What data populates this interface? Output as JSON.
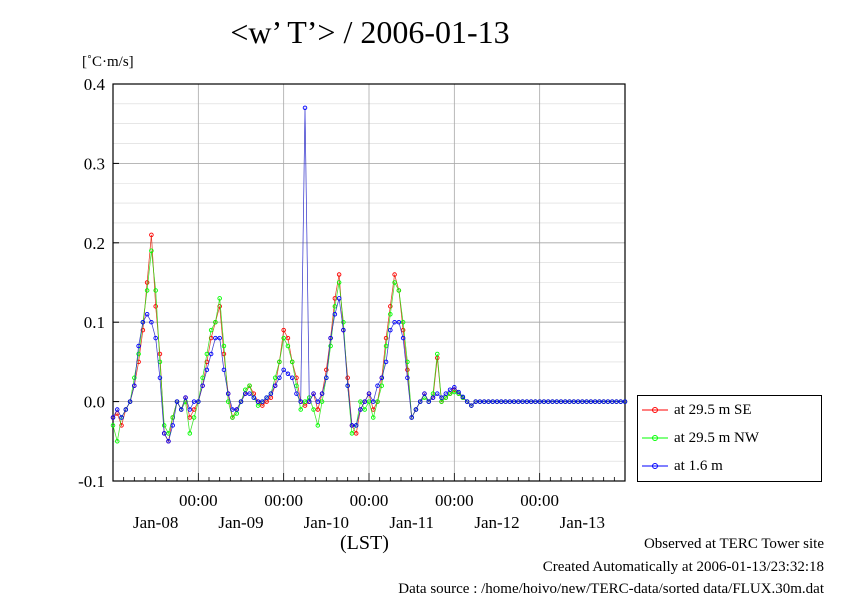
{
  "title": "<w’ T’> / 2006-01-13",
  "unit_label": "[˚C·m/s]",
  "x_axis_label": "(LST)",
  "footer": {
    "line1": "Observed at TERC Tower site",
    "line2": "Created Automatically at 2006-01-13/23:32:18",
    "line3": "Data source : /home/hoivo/new/TERC-data/sorted  data/FLUX.30m.dat"
  },
  "colors": {
    "series1": "#ff0000",
    "series2": "#00ff00",
    "series3": "#0000ff",
    "connector": "#8a8a2a",
    "grid": "#a8a8a8"
  },
  "chart_data": {
    "type": "line",
    "title": "<w’ T’> / 2006-01-13",
    "xlabel": "(LST)",
    "ylabel": "[˚C·m/s]",
    "ylim": [
      -0.1,
      0.4
    ],
    "yticks": [
      "-0.1",
      "0.0",
      "0.1",
      "0.2",
      "0.3",
      "0.4"
    ],
    "xlim_days": [
      0,
      6
    ],
    "time_ticks": [
      "00:00",
      "00:00",
      "00:00",
      "00:00",
      "00:00"
    ],
    "day_labels": [
      "Jan-08",
      "Jan-09",
      "Jan-10",
      "Jan-11",
      "Jan-12",
      "Jan-13"
    ],
    "grid": true,
    "legend_position": "right-bottom",
    "x_units": "days since start of Jan-08 (LST)",
    "series": [
      {
        "name": "at 29.5 m SE",
        "color": "#ff0000",
        "x": [
          0.0,
          0.05,
          0.1,
          0.15,
          0.2,
          0.25,
          0.3,
          0.35,
          0.4,
          0.45,
          0.5,
          0.55,
          0.6,
          0.65,
          0.7,
          0.75,
          0.8,
          0.85,
          0.9,
          0.95,
          1.0,
          1.05,
          1.1,
          1.15,
          1.2,
          1.25,
          1.3,
          1.35,
          1.4,
          1.45,
          1.5,
          1.55,
          1.6,
          1.65,
          1.7,
          1.75,
          1.8,
          1.85,
          1.9,
          1.95,
          2.0,
          2.05,
          2.1,
          2.15,
          2.2,
          2.25,
          2.3,
          2.35,
          2.4,
          2.45,
          2.5,
          2.55,
          2.6,
          2.65,
          2.7,
          2.75,
          2.8,
          2.85,
          2.9,
          2.95,
          3.0,
          3.05,
          3.1,
          3.15,
          3.2,
          3.25,
          3.3,
          3.35,
          3.4,
          3.45,
          3.5,
          3.55,
          3.6,
          3.65,
          3.7,
          3.75,
          3.8,
          3.85,
          3.9,
          3.95,
          4.0,
          4.05,
          4.1,
          4.15,
          4.2,
          4.25,
          4.3,
          4.35,
          4.4,
          4.45,
          4.5,
          4.55,
          4.6,
          4.65,
          4.7,
          4.75,
          4.8,
          4.85,
          4.9,
          4.95,
          5.0,
          5.05,
          5.1,
          5.15,
          5.2,
          5.25,
          5.3,
          5.35,
          5.4,
          5.45,
          5.5,
          5.55,
          5.6,
          5.65,
          5.7,
          5.75,
          5.8,
          5.85,
          5.9,
          5.95,
          6.0
        ],
        "values": [
          -0.02,
          -0.015,
          -0.03,
          -0.01,
          0.0,
          0.02,
          0.05,
          0.09,
          0.15,
          0.21,
          0.12,
          0.06,
          -0.04,
          -0.05,
          -0.02,
          0.0,
          -0.01,
          0.005,
          -0.02,
          -0.01,
          0.0,
          0.02,
          0.05,
          0.08,
          0.1,
          0.12,
          0.06,
          0.01,
          -0.02,
          -0.01,
          0.0,
          0.01,
          0.02,
          0.01,
          0.0,
          -0.005,
          0.0,
          0.005,
          0.02,
          0.05,
          0.09,
          0.08,
          0.05,
          0.03,
          0.0,
          -0.005,
          0.0,
          0.01,
          -0.01,
          0.01,
          0.04,
          0.08,
          0.13,
          0.16,
          0.09,
          0.03,
          -0.03,
          -0.04,
          -0.01,
          0.0,
          0.01,
          -0.01,
          0.0,
          0.03,
          0.08,
          0.12,
          0.16,
          0.14,
          0.09,
          0.04,
          -0.02,
          -0.01,
          0.0,
          0.01,
          0.0,
          0.005,
          0.055,
          0.0,
          0.005,
          0.01,
          0.015,
          0.01,
          0.005,
          0.0,
          -0.005,
          0.0,
          0.0,
          0.0,
          0.0,
          0.0,
          0.0,
          0.0,
          0.0,
          0.0,
          0.0,
          0.0,
          0.0,
          0.0,
          0.0,
          0.0,
          0.0,
          0.0,
          0.0,
          0.0,
          0.0,
          0.0,
          0.0,
          0.0,
          0.0,
          0.0,
          0.0,
          0.0,
          0.0,
          0.0,
          0.0,
          0.0,
          0.0,
          0.0,
          0.0,
          0.0,
          0.0
        ]
      },
      {
        "name": "at 29.5 m NW",
        "color": "#00ff00",
        "x": [
          0.0,
          0.05,
          0.1,
          0.15,
          0.2,
          0.25,
          0.3,
          0.35,
          0.4,
          0.45,
          0.5,
          0.55,
          0.6,
          0.65,
          0.7,
          0.75,
          0.8,
          0.85,
          0.9,
          0.95,
          1.0,
          1.05,
          1.1,
          1.15,
          1.2,
          1.25,
          1.3,
          1.35,
          1.4,
          1.45,
          1.5,
          1.55,
          1.6,
          1.65,
          1.7,
          1.75,
          1.8,
          1.85,
          1.9,
          1.95,
          2.0,
          2.05,
          2.1,
          2.15,
          2.2,
          2.25,
          2.3,
          2.35,
          2.4,
          2.45,
          2.5,
          2.55,
          2.6,
          2.65,
          2.7,
          2.75,
          2.8,
          2.85,
          2.9,
          2.95,
          3.0,
          3.05,
          3.1,
          3.15,
          3.2,
          3.25,
          3.3,
          3.35,
          3.4,
          3.45,
          3.5,
          3.55,
          3.6,
          3.65,
          3.7,
          3.75,
          3.8,
          3.85,
          3.9,
          3.95,
          4.0,
          4.05,
          4.1,
          4.15,
          4.2,
          4.25,
          4.3,
          4.35,
          4.4,
          4.45,
          4.5,
          4.55,
          4.6,
          4.65,
          4.7,
          4.75,
          4.8,
          4.85,
          4.9,
          4.95,
          5.0,
          5.05,
          5.1,
          5.15,
          5.2,
          5.25,
          5.3,
          5.35,
          5.4,
          5.45,
          5.5,
          5.55,
          5.6,
          5.65,
          5.7,
          5.75,
          5.8,
          5.85,
          5.9,
          5.95,
          6.0
        ],
        "values": [
          -0.03,
          -0.05,
          -0.02,
          -0.01,
          0.0,
          0.03,
          0.06,
          0.1,
          0.14,
          0.19,
          0.14,
          0.05,
          -0.03,
          -0.04,
          -0.02,
          0.0,
          -0.01,
          0.0,
          -0.04,
          -0.02,
          0.0,
          0.03,
          0.06,
          0.09,
          0.1,
          0.13,
          0.07,
          0.0,
          -0.02,
          -0.015,
          0.0,
          0.015,
          0.02,
          0.005,
          -0.005,
          0.0,
          0.005,
          0.01,
          0.03,
          0.05,
          0.08,
          0.07,
          0.05,
          0.02,
          -0.01,
          0.0,
          0.005,
          -0.01,
          -0.03,
          0.0,
          0.03,
          0.07,
          0.12,
          0.15,
          0.1,
          0.02,
          -0.04,
          -0.03,
          0.0,
          -0.01,
          0.0,
          -0.02,
          0.0,
          0.02,
          0.07,
          0.11,
          0.15,
          0.14,
          0.1,
          0.05,
          -0.02,
          -0.01,
          0.0,
          0.005,
          0.0,
          0.01,
          0.06,
          0.0,
          0.005,
          0.01,
          0.012,
          0.01,
          0.005,
          0.0,
          -0.005,
          0.0,
          0.0,
          0.0,
          0.0,
          0.0,
          0.0,
          0.0,
          0.0,
          0.0,
          0.0,
          0.0,
          0.0,
          0.0,
          0.0,
          0.0,
          0.0,
          0.0,
          0.0,
          0.0,
          0.0,
          0.0,
          0.0,
          0.0,
          0.0,
          0.0,
          0.0,
          0.0,
          0.0,
          0.0,
          0.0,
          0.0,
          0.0,
          0.0,
          0.0,
          0.0,
          0.0
        ]
      },
      {
        "name": "at 1.6 m",
        "color": "#0000ff",
        "x": [
          0.0,
          0.05,
          0.1,
          0.15,
          0.2,
          0.25,
          0.3,
          0.35,
          0.4,
          0.45,
          0.5,
          0.55,
          0.6,
          0.65,
          0.7,
          0.75,
          0.8,
          0.85,
          0.9,
          0.95,
          1.0,
          1.05,
          1.1,
          1.15,
          1.2,
          1.25,
          1.3,
          1.35,
          1.4,
          1.45,
          1.5,
          1.55,
          1.6,
          1.65,
          1.7,
          1.75,
          1.8,
          1.85,
          1.9,
          1.95,
          2.0,
          2.05,
          2.1,
          2.15,
          2.2,
          2.25,
          2.3,
          2.35,
          2.4,
          2.45,
          2.5,
          2.55,
          2.6,
          2.65,
          2.7,
          2.75,
          2.8,
          2.85,
          2.9,
          2.95,
          3.0,
          3.05,
          3.1,
          3.15,
          3.2,
          3.25,
          3.3,
          3.35,
          3.4,
          3.45,
          3.5,
          3.55,
          3.6,
          3.65,
          3.7,
          3.75,
          3.8,
          3.85,
          3.9,
          3.95,
          4.0,
          4.05,
          4.1,
          4.15,
          4.2,
          4.25,
          4.3,
          4.35,
          4.4,
          4.45,
          4.5,
          4.55,
          4.6,
          4.65,
          4.7,
          4.75,
          4.8,
          4.85,
          4.9,
          4.95,
          5.0,
          5.05,
          5.1,
          5.15,
          5.2,
          5.25,
          5.3,
          5.35,
          5.4,
          5.45,
          5.5,
          5.55,
          5.6,
          5.65,
          5.7,
          5.75,
          5.8,
          5.85,
          5.9,
          5.95,
          6.0
        ],
        "values": [
          -0.02,
          -0.01,
          -0.02,
          -0.01,
          0.0,
          0.02,
          0.07,
          0.1,
          0.11,
          0.1,
          0.08,
          0.03,
          -0.04,
          -0.05,
          -0.03,
          0.0,
          -0.01,
          0.005,
          -0.01,
          0.0,
          0.0,
          0.02,
          0.04,
          0.06,
          0.08,
          0.08,
          0.04,
          0.01,
          -0.01,
          -0.01,
          0.0,
          0.01,
          0.01,
          0.005,
          0.0,
          0.0,
          0.005,
          0.01,
          0.02,
          0.03,
          0.04,
          0.035,
          0.03,
          0.01,
          0.0,
          0.37,
          0.0,
          0.01,
          0.0,
          0.01,
          0.03,
          0.08,
          0.11,
          0.13,
          0.09,
          0.02,
          -0.03,
          -0.03,
          -0.01,
          0.0,
          0.01,
          0.0,
          0.02,
          0.03,
          0.05,
          0.09,
          0.1,
          0.1,
          0.08,
          0.03,
          -0.02,
          -0.01,
          0.0,
          0.01,
          0.0,
          0.005,
          0.01,
          0.005,
          0.01,
          0.015,
          0.018,
          0.012,
          0.006,
          0.0,
          -0.005,
          0.0,
          0.0,
          0.0,
          0.0,
          0.0,
          0.0,
          0.0,
          0.0,
          0.0,
          0.0,
          0.0,
          0.0,
          0.0,
          0.0,
          0.0,
          0.0,
          0.0,
          0.0,
          0.0,
          0.0,
          0.0,
          0.0,
          0.0,
          0.0,
          0.0,
          0.0,
          0.0,
          0.0,
          0.0,
          0.0,
          0.0,
          0.0,
          0.0,
          0.0,
          0.0,
          0.0
        ]
      }
    ]
  },
  "legend": {
    "items": [
      {
        "label": "at 29.5 m SE",
        "color": "#ff0000"
      },
      {
        "label": "at 29.5 m NW",
        "color": "#00ff00"
      },
      {
        "label": "at 1.6 m",
        "color": "#0000ff"
      }
    ]
  }
}
